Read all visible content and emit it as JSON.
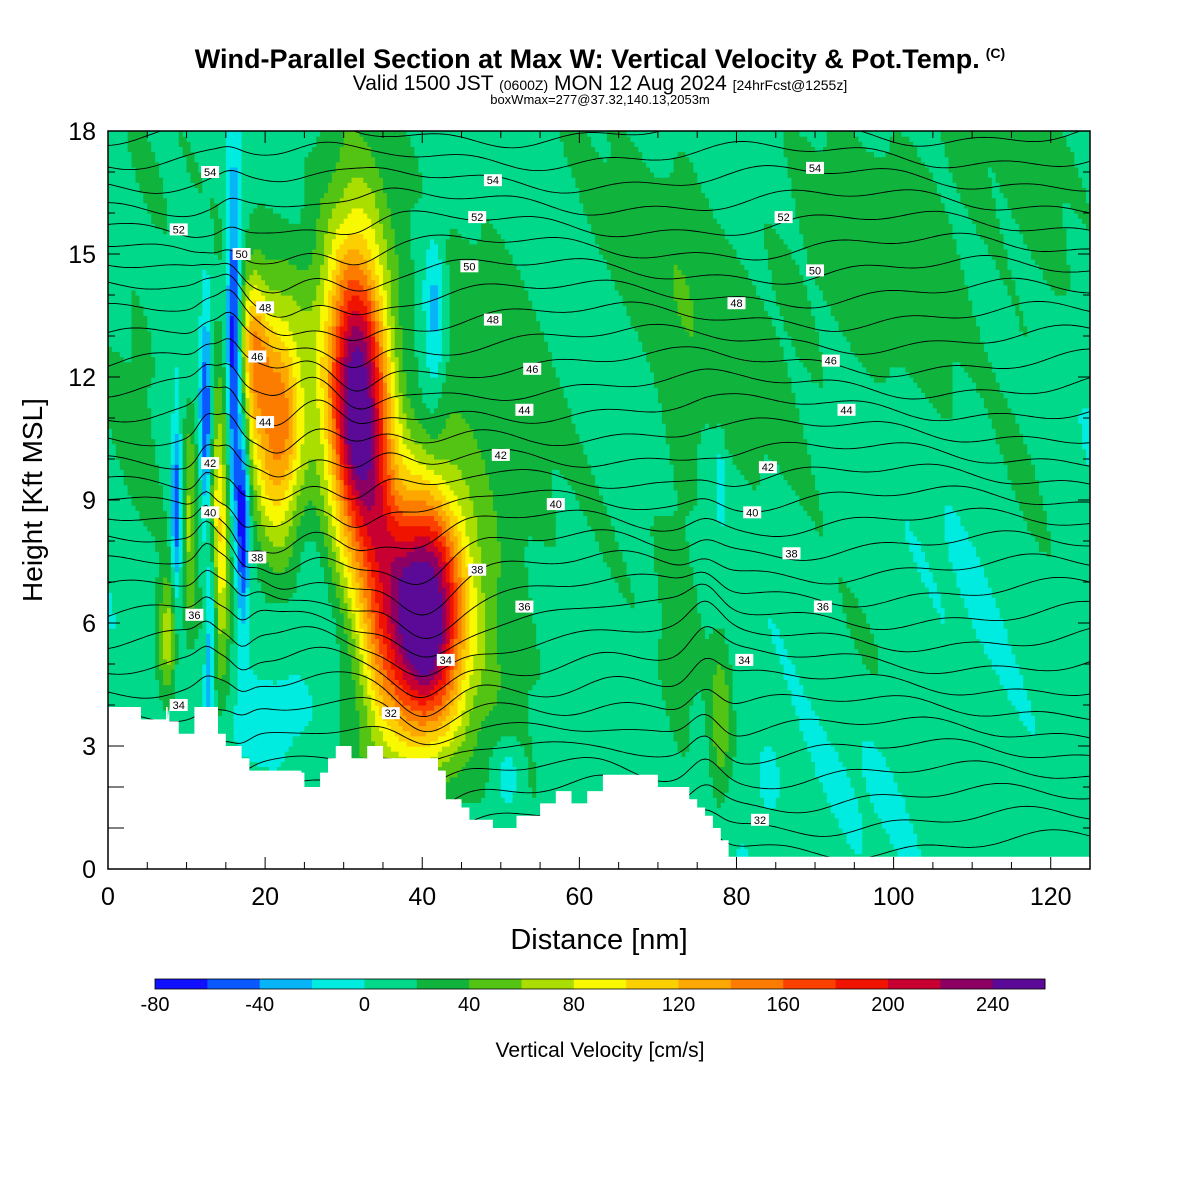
{
  "header": {
    "title": "Wind-Parallel Section at Max W: Vertical Velocity & Pot.Temp.",
    "copyright": "(C)",
    "valid_prefix": "Valid 1500 JST",
    "valid_utc": "(0600Z)",
    "valid_date": "MON 12 Aug 2024",
    "forecast": "[24hrFcst@1255z]",
    "boxinfo": "boxWmax=277@37.32,140.13,2053m"
  },
  "chart_data": {
    "type": "heatmap",
    "xlabel": "Distance [nm]",
    "ylabel": "Height [Kft MSL]",
    "xlim": [
      0,
      125
    ],
    "ylim": [
      0,
      18
    ],
    "x_ticks": [
      0,
      20,
      40,
      60,
      80,
      100,
      120
    ],
    "y_ticks": [
      0,
      3,
      6,
      9,
      12,
      15,
      18
    ],
    "colorbar": {
      "label": "Vertical Velocity [cm/s]",
      "min": -80,
      "max": 260,
      "step": 20,
      "tick_labels": [
        "-80",
        "-40",
        "0",
        "40",
        "80",
        "120",
        "160",
        "200",
        "240"
      ],
      "tick_values": [
        -80,
        -40,
        0,
        40,
        80,
        120,
        160,
        200,
        240
      ],
      "colors": [
        "#1010ff",
        "#0a58ff",
        "#08b4f8",
        "#00ece0",
        "#00d88a",
        "#10b43c",
        "#54c414",
        "#aade00",
        "#f8f800",
        "#fcd000",
        "#fca800",
        "#fc7c00",
        "#fc4000",
        "#f01400",
        "#c80032",
        "#8c0064",
        "#5a0a96"
      ]
    },
    "theta_labels": [
      {
        "value": "54",
        "x": 13,
        "z": 17.0
      },
      {
        "value": "54",
        "x": 49,
        "z": 16.8
      },
      {
        "value": "54",
        "x": 90,
        "z": 17.1
      },
      {
        "value": "52",
        "x": 9,
        "z": 15.6
      },
      {
        "value": "52",
        "x": 47,
        "z": 15.9
      },
      {
        "value": "52",
        "x": 86,
        "z": 15.9
      },
      {
        "value": "50",
        "x": 17,
        "z": 15.0
      },
      {
        "value": "50",
        "x": 46,
        "z": 14.7
      },
      {
        "value": "50",
        "x": 90,
        "z": 14.6
      },
      {
        "value": "48",
        "x": 20,
        "z": 13.7
      },
      {
        "value": "48",
        "x": 49,
        "z": 13.4
      },
      {
        "value": "48",
        "x": 80,
        "z": 13.8
      },
      {
        "value": "46",
        "x": 19,
        "z": 12.5
      },
      {
        "value": "46",
        "x": 54,
        "z": 12.2
      },
      {
        "value": "46",
        "x": 92,
        "z": 12.4
      },
      {
        "value": "44",
        "x": 20,
        "z": 10.9
      },
      {
        "value": "44",
        "x": 53,
        "z": 11.2
      },
      {
        "value": "44",
        "x": 94,
        "z": 11.2
      },
      {
        "value": "42",
        "x": 13,
        "z": 9.9
      },
      {
        "value": "42",
        "x": 50,
        "z": 10.1
      },
      {
        "value": "42",
        "x": 84,
        "z": 9.8
      },
      {
        "value": "40",
        "x": 13,
        "z": 8.7
      },
      {
        "value": "40",
        "x": 57,
        "z": 8.9
      },
      {
        "value": "40",
        "x": 82,
        "z": 8.7
      },
      {
        "value": "38",
        "x": 19,
        "z": 7.6
      },
      {
        "value": "38",
        "x": 47,
        "z": 7.3
      },
      {
        "value": "38",
        "x": 87,
        "z": 7.7
      },
      {
        "value": "36",
        "x": 11,
        "z": 6.2
      },
      {
        "value": "36",
        "x": 53,
        "z": 6.4
      },
      {
        "value": "36",
        "x": 91,
        "z": 6.4
      },
      {
        "value": "34",
        "x": 9,
        "z": 4.0
      },
      {
        "value": "34",
        "x": 43,
        "z": 5.1
      },
      {
        "value": "34",
        "x": 81,
        "z": 5.1
      },
      {
        "value": "32",
        "x": 36,
        "z": 3.8
      },
      {
        "value": "32",
        "x": 83,
        "z": 1.2
      }
    ],
    "terrain": [
      {
        "x": 0,
        "z": 3.95
      },
      {
        "x": 0.8,
        "z": 3.95
      },
      {
        "x": 4.2,
        "z": 3.95
      },
      {
        "x": 4.2,
        "z": 3.65
      },
      {
        "x": 7.4,
        "z": 3.65
      },
      {
        "x": 7.4,
        "z": 3.95
      },
      {
        "x": 7.6,
        "z": 3.95
      },
      {
        "x": 7.6,
        "z": 3.65
      },
      {
        "x": 7.8,
        "z": 3.95
      },
      {
        "x": 7.8,
        "z": 3.6
      },
      {
        "x": 9,
        "z": 3.6
      },
      {
        "x": 9,
        "z": 3.3
      },
      {
        "x": 11,
        "z": 3.3
      },
      {
        "x": 11,
        "z": 3.95
      },
      {
        "x": 14,
        "z": 3.95
      },
      {
        "x": 14,
        "z": 3.3
      },
      {
        "x": 15,
        "z": 3.3
      },
      {
        "x": 15,
        "z": 3.0
      },
      {
        "x": 17,
        "z": 3.0
      },
      {
        "x": 17,
        "z": 2.7
      },
      {
        "x": 18,
        "z": 2.7
      },
      {
        "x": 18,
        "z": 2.4
      },
      {
        "x": 21,
        "z": 2.4
      },
      {
        "x": 21,
        "z": 2.4
      },
      {
        "x": 24.6,
        "z": 2.4
      },
      {
        "x": 24.6,
        "z": 2.35
      },
      {
        "x": 25,
        "z": 2.35
      },
      {
        "x": 25,
        "z": 2.0
      },
      {
        "x": 27,
        "z": 2.0
      },
      {
        "x": 27,
        "z": 2.35
      },
      {
        "x": 28,
        "z": 2.35
      },
      {
        "x": 28,
        "z": 2.7
      },
      {
        "x": 29,
        "z": 2.7
      },
      {
        "x": 29,
        "z": 3.0
      },
      {
        "x": 31,
        "z": 3.0
      },
      {
        "x": 31,
        "z": 2.7
      },
      {
        "x": 33,
        "z": 2.7
      },
      {
        "x": 33,
        "z": 3.0
      },
      {
        "x": 35,
        "z": 3.0
      },
      {
        "x": 35,
        "z": 2.7
      },
      {
        "x": 38,
        "z": 2.7
      },
      {
        "x": 38,
        "z": 2.7
      },
      {
        "x": 42,
        "z": 2.7
      },
      {
        "x": 42,
        "z": 2.4
      },
      {
        "x": 43,
        "z": 2.4
      },
      {
        "x": 43,
        "z": 1.7
      },
      {
        "x": 45,
        "z": 1.7
      },
      {
        "x": 45,
        "z": 1.5
      },
      {
        "x": 46,
        "z": 1.5
      },
      {
        "x": 46,
        "z": 1.2
      },
      {
        "x": 49,
        "z": 1.2
      },
      {
        "x": 49,
        "z": 1.0
      },
      {
        "x": 52,
        "z": 1.0
      },
      {
        "x": 52,
        "z": 1.3
      },
      {
        "x": 55,
        "z": 1.3
      },
      {
        "x": 55,
        "z": 1.6
      },
      {
        "x": 57,
        "z": 1.6
      },
      {
        "x": 57,
        "z": 1.9
      },
      {
        "x": 59,
        "z": 1.9
      },
      {
        "x": 59,
        "z": 1.6
      },
      {
        "x": 61,
        "z": 1.6
      },
      {
        "x": 61,
        "z": 1.9
      },
      {
        "x": 63,
        "z": 1.9
      },
      {
        "x": 63,
        "z": 2.3
      },
      {
        "x": 70,
        "z": 2.3
      },
      {
        "x": 70,
        "z": 2.0
      },
      {
        "x": 74,
        "z": 2.0
      },
      {
        "x": 74,
        "z": 1.7
      },
      {
        "x": 75,
        "z": 1.7
      },
      {
        "x": 75,
        "z": 1.5
      },
      {
        "x": 76,
        "z": 1.5
      },
      {
        "x": 76,
        "z": 1.3
      },
      {
        "x": 77,
        "z": 1.3
      },
      {
        "x": 77,
        "z": 1.0
      },
      {
        "x": 78,
        "z": 1.0
      },
      {
        "x": 78,
        "z": 0.7
      },
      {
        "x": 79,
        "z": 0.7
      },
      {
        "x": 79,
        "z": 0.3
      },
      {
        "x": 80,
        "z": 0.3
      },
      {
        "x": 80,
        "z": 0.3
      },
      {
        "x": 125,
        "z": 0.3
      }
    ],
    "cells": [
      {
        "x": 40,
        "z": 6.1,
        "sx": 3.5,
        "sz": 2.1,
        "amp": 260
      },
      {
        "x": 31.5,
        "z": 11.3,
        "sx": 2.5,
        "sz": 2.7,
        "amp": 200
      },
      {
        "x": 34.5,
        "z": 8.0,
        "sx": 2.2,
        "sz": 3.5,
        "amp": 90
      },
      {
        "x": 21.5,
        "z": 10.7,
        "sx": 2.3,
        "sz": 2.1,
        "amp": 150
      },
      {
        "x": 18.5,
        "z": 12.6,
        "sx": 1.2,
        "sz": 1.4,
        "amp": 95
      },
      {
        "x": 14,
        "z": 8.3,
        "sx": 1.3,
        "sz": 2.6,
        "amp": 105
      },
      {
        "x": 7.6,
        "z": 5.7,
        "sx": 0.9,
        "sz": 1.1,
        "amp": 70
      },
      {
        "x": 10.4,
        "z": 8.5,
        "sx": 0.6,
        "sz": 2.0,
        "amp": 55
      },
      {
        "x": 46,
        "z": 9.0,
        "sx": 6,
        "sz": 4,
        "amp": 38
      },
      {
        "x": 30,
        "z": 13.3,
        "sx": 4,
        "sz": 2.8,
        "amp": 55
      },
      {
        "x": 73,
        "z": 7.0,
        "sx": 2,
        "sz": 9,
        "amp": 14
      },
      {
        "x": 78,
        "z": 3.6,
        "sx": 1.0,
        "sz": 1.5,
        "amp": 45
      },
      {
        "x": 16,
        "z": 12.5,
        "sx": 0.65,
        "sz": 3.2,
        "amp": -95
      },
      {
        "x": 12.5,
        "z": 10.5,
        "sx": 0.55,
        "sz": 2.2,
        "amp": -90
      },
      {
        "x": 17.2,
        "z": 8.4,
        "sx": 0.55,
        "sz": 1.8,
        "amp": -85
      },
      {
        "x": 8.7,
        "z": 8.7,
        "sx": 0.45,
        "sz": 1.6,
        "amp": -70
      },
      {
        "x": 12.9,
        "z": 5.0,
        "sx": 0.45,
        "sz": 1.6,
        "amp": -55
      },
      {
        "x": 13.4,
        "z": 7.0,
        "sx": 0.5,
        "sz": 1.5,
        "amp": -50
      },
      {
        "x": 41.5,
        "z": 13.5,
        "sx": 1.0,
        "sz": 1.6,
        "amp": -45
      },
      {
        "x": 21,
        "z": 3.7,
        "sx": 3.5,
        "sz": 0.8,
        "amp": -30
      },
      {
        "x": 51,
        "z": 2.4,
        "sx": 1.2,
        "sz": 0.6,
        "amp": -30
      },
      {
        "x": 84,
        "z": 2.1,
        "sx": 0.8,
        "sz": 0.5,
        "amp": -22
      },
      {
        "x": 78,
        "z": 9.4,
        "sx": 0.3,
        "sz": 0.8,
        "amp": -30
      },
      {
        "x": 82,
        "z": 14.5,
        "sx": 14,
        "sz": 3,
        "amp": 16
      },
      {
        "x": 104,
        "z": 16.5,
        "sx": 8,
        "sz": 3,
        "amp": 14
      },
      {
        "x": 118,
        "z": 11,
        "sx": 4,
        "sz": 4,
        "amp": 14
      },
      {
        "x": 60,
        "z": 16,
        "sx": 10,
        "sz": 3,
        "amp": 12
      },
      {
        "x": 96,
        "z": 5.2,
        "sx": 6,
        "sz": 1.5,
        "amp": 12
      },
      {
        "x": 4,
        "z": 10,
        "sx": 3,
        "sz": 6,
        "amp": 14
      }
    ]
  }
}
